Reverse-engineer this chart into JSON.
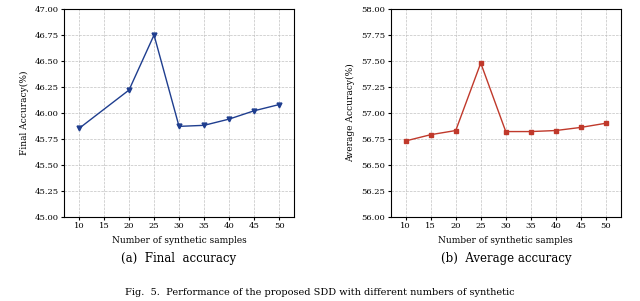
{
  "left": {
    "x": [
      10,
      20,
      25,
      30,
      35,
      40,
      45,
      50
    ],
    "y": [
      45.85,
      46.22,
      46.75,
      45.87,
      45.88,
      45.94,
      46.02,
      46.08
    ],
    "color": "#1f3e8f",
    "marker": "v",
    "ylabel": "Final Accuracy(%)",
    "xlabel": "Number of synthetic samples",
    "ylim": [
      45.0,
      47.0
    ],
    "yticks": [
      45.0,
      45.25,
      45.5,
      45.75,
      46.0,
      46.25,
      46.5,
      46.75,
      47.0
    ],
    "xticks": [
      10,
      15,
      20,
      25,
      30,
      35,
      40,
      45,
      50
    ],
    "caption": "(a)  Final  accuracy"
  },
  "right": {
    "x": [
      10,
      15,
      20,
      25,
      30,
      35,
      40,
      45,
      50
    ],
    "y": [
      56.73,
      56.79,
      56.83,
      57.48,
      56.82,
      56.82,
      56.83,
      56.86,
      56.9
    ],
    "color": "#c0392b",
    "marker": "s",
    "ylabel": "Average Accuracy(%)",
    "xlabel": "Number of synthetic samples",
    "ylim": [
      56.0,
      58.0
    ],
    "yticks": [
      56.0,
      56.25,
      56.5,
      56.75,
      57.0,
      57.25,
      57.5,
      57.75,
      58.0
    ],
    "xticks": [
      10,
      15,
      20,
      25,
      30,
      35,
      40,
      45,
      50
    ],
    "caption": "(b)  Average accuracy"
  },
  "fig_caption": "Fig.  5.  Performance of the proposed SDD with different numbers of synthetic"
}
